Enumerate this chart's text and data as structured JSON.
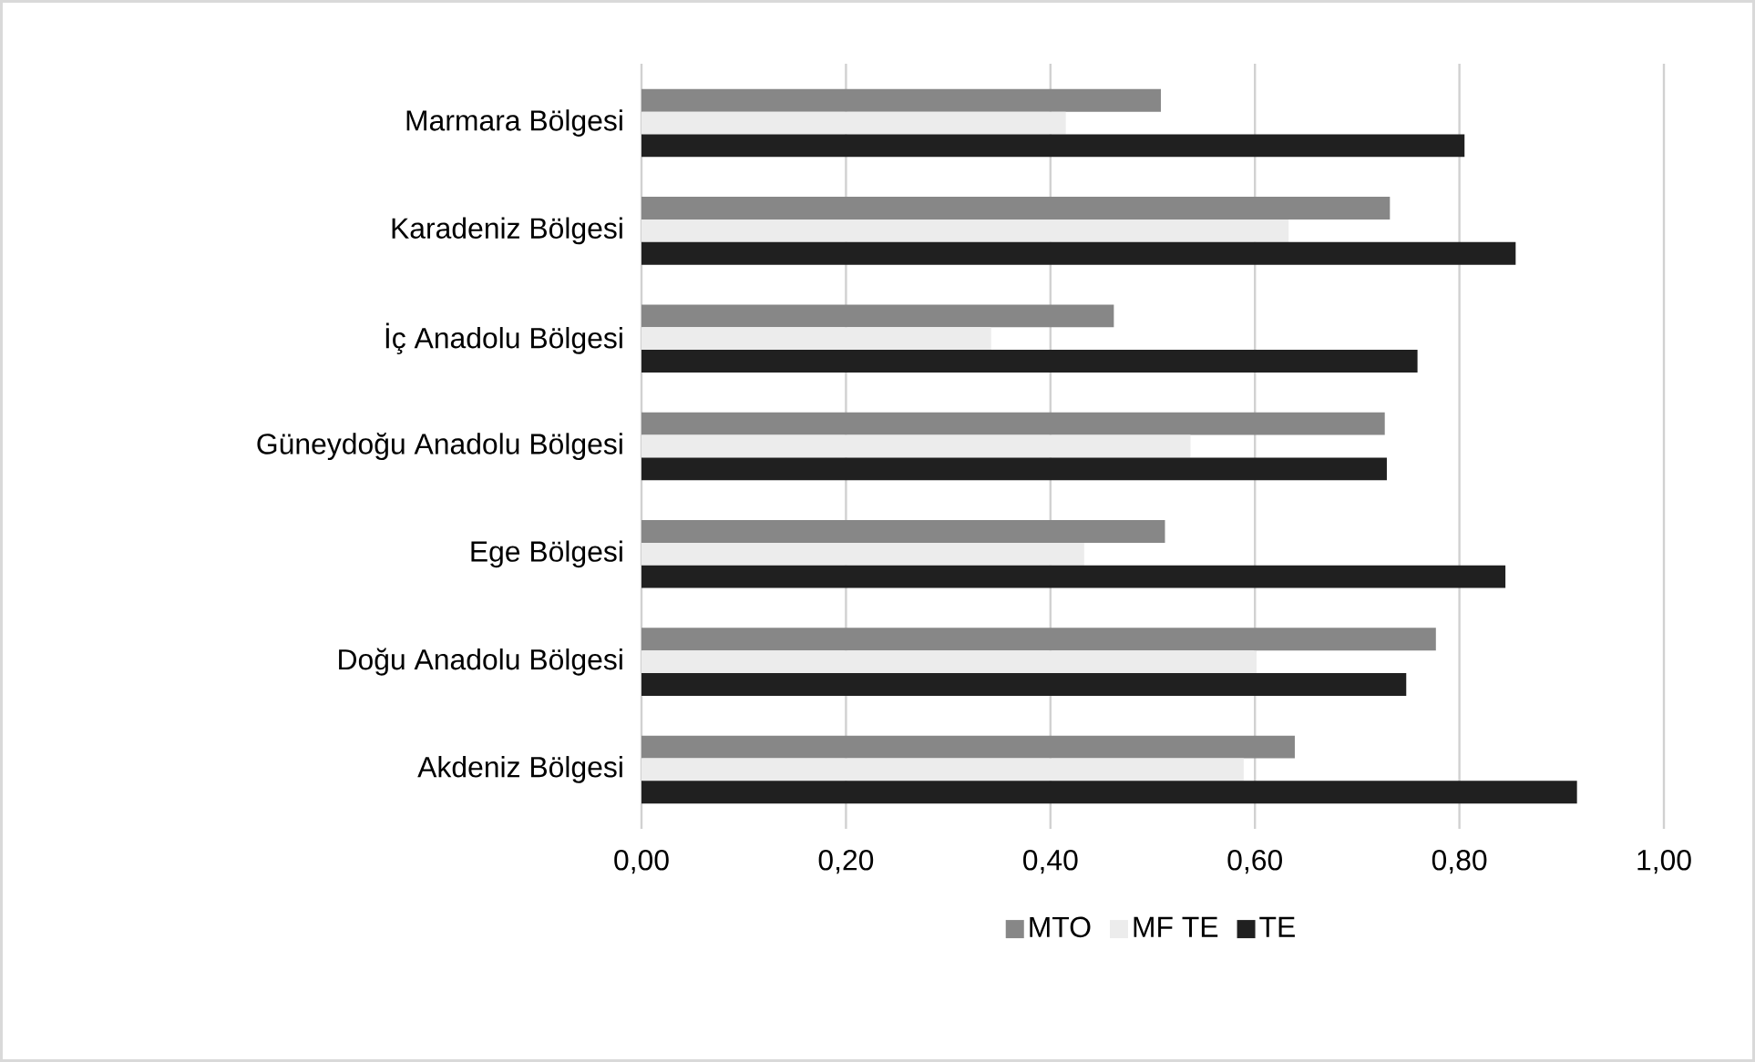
{
  "chart_data": {
    "type": "bar",
    "orientation": "horizontal",
    "categories": [
      "Marmara Bölgesi",
      "Karadeniz Bölgesi",
      "İç Anadolu Bölgesi",
      "Güneydoğu Anadolu Bölgesi",
      "Ege Bölgesi",
      "Doğu Anadolu Bölgesi",
      "Akdeniz Bölgesi"
    ],
    "series": [
      {
        "name": "MTO",
        "color": "#878787",
        "values": [
          0.508,
          0.732,
          0.462,
          0.727,
          0.512,
          0.777,
          0.639
        ]
      },
      {
        "name": "MF TE",
        "color": "#ececec",
        "values": [
          0.415,
          0.633,
          0.342,
          0.537,
          0.433,
          0.601,
          0.589
        ]
      },
      {
        "name": "TE",
        "color": "#202020",
        "values": [
          0.805,
          0.855,
          0.759,
          0.729,
          0.845,
          0.748,
          0.915
        ]
      }
    ],
    "xlim": [
      0,
      1
    ],
    "xticks": [
      {
        "value": 0,
        "label": "0,00"
      },
      {
        "value": 0.2,
        "label": "0,20"
      },
      {
        "value": 0.4,
        "label": "0,40"
      },
      {
        "value": 0.6,
        "label": "0,60"
      },
      {
        "value": 0.8,
        "label": "0,80"
      },
      {
        "value": 1,
        "label": "1,00"
      }
    ],
    "grid": "x",
    "legend": "bottom"
  }
}
